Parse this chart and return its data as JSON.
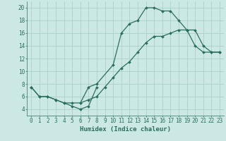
{
  "background_color": "#cce8e4",
  "grid_color": "#aacfcb",
  "line_color": "#2a6e60",
  "line1_x": [
    0,
    1,
    2,
    3,
    4,
    5,
    6,
    7,
    8
  ],
  "line1_y": [
    7.5,
    6.0,
    6.0,
    5.5,
    5.0,
    4.5,
    4.0,
    4.5,
    7.5
  ],
  "line2_x": [
    0,
    1,
    2,
    3,
    4,
    5,
    6,
    7,
    8,
    10,
    11,
    12,
    13,
    14,
    15,
    16,
    17,
    18,
    19,
    20,
    21,
    22,
    23
  ],
  "line2_y": [
    7.5,
    6.0,
    6.0,
    5.5,
    5.0,
    5.0,
    5.0,
    7.5,
    8.0,
    11.0,
    16.0,
    17.5,
    18.0,
    20.0,
    20.0,
    19.5,
    19.5,
    18.0,
    16.5,
    14.0,
    13.0,
    13.0,
    13.0
  ],
  "line3_x": [
    6,
    7,
    8,
    9,
    10,
    11,
    12,
    13,
    14,
    15,
    16,
    17,
    18,
    19,
    20,
    21,
    22,
    23
  ],
  "line3_y": [
    5.0,
    5.5,
    6.0,
    7.5,
    9.0,
    10.5,
    11.5,
    13.0,
    14.5,
    15.5,
    15.5,
    16.0,
    16.5,
    16.5,
    16.5,
    14.0,
    13.0,
    13.0
  ],
  "xlim": [
    -0.5,
    23.5
  ],
  "ylim": [
    3,
    21
  ],
  "xticks": [
    0,
    1,
    2,
    3,
    4,
    5,
    6,
    7,
    8,
    9,
    10,
    11,
    12,
    13,
    14,
    15,
    16,
    17,
    18,
    19,
    20,
    21,
    22,
    23
  ],
  "yticks": [
    4,
    6,
    8,
    10,
    12,
    14,
    16,
    18,
    20
  ],
  "xlabel": "Humidex (Indice chaleur)",
  "marker": "D",
  "markersize": 2.0,
  "linewidth": 0.9,
  "tick_fontsize": 5.5,
  "label_fontsize": 6.5
}
